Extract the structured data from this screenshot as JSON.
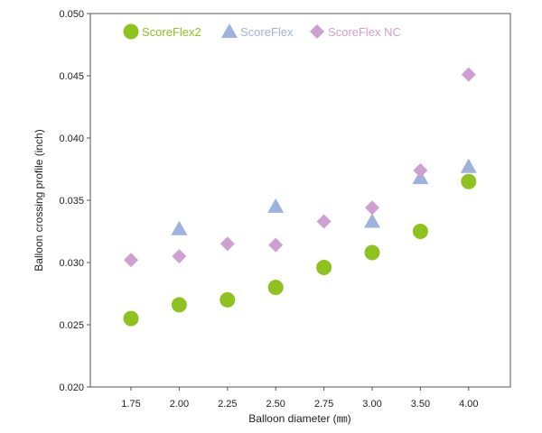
{
  "chart_data": {
    "type": "scatter",
    "xlabel": "Balloon diameter (㎜)",
    "ylabel": "Balloon crossing profile (inch)",
    "categories": [
      "1.75",
      "2.00",
      "2.25",
      "2.50",
      "2.75",
      "3.00",
      "3.50",
      "4.00"
    ],
    "ylim": [
      0.02,
      0.05
    ],
    "yticks": [
      "0.020",
      "0.025",
      "0.030",
      "0.035",
      "0.040",
      "0.045",
      "0.050"
    ],
    "grid": false,
    "legend_position": "top-left",
    "series": [
      {
        "name": "ScoreFlex2",
        "marker": "circle",
        "color": "#8dc21f",
        "values": [
          0.0255,
          0.0266,
          0.027,
          0.028,
          0.0296,
          0.0308,
          0.0325,
          0.0365
        ]
      },
      {
        "name": "ScoreFlex",
        "marker": "triangle",
        "color": "#9db3de",
        "values": [
          null,
          0.0327,
          null,
          0.0345,
          null,
          0.0333,
          0.0368,
          0.0377
        ]
      },
      {
        "name": "ScoreFlex NC",
        "marker": "diamond",
        "color": "#cf9fd1",
        "values": [
          0.0302,
          0.0305,
          0.0315,
          0.0314,
          0.0333,
          0.0344,
          0.0374,
          0.0451
        ]
      }
    ]
  }
}
